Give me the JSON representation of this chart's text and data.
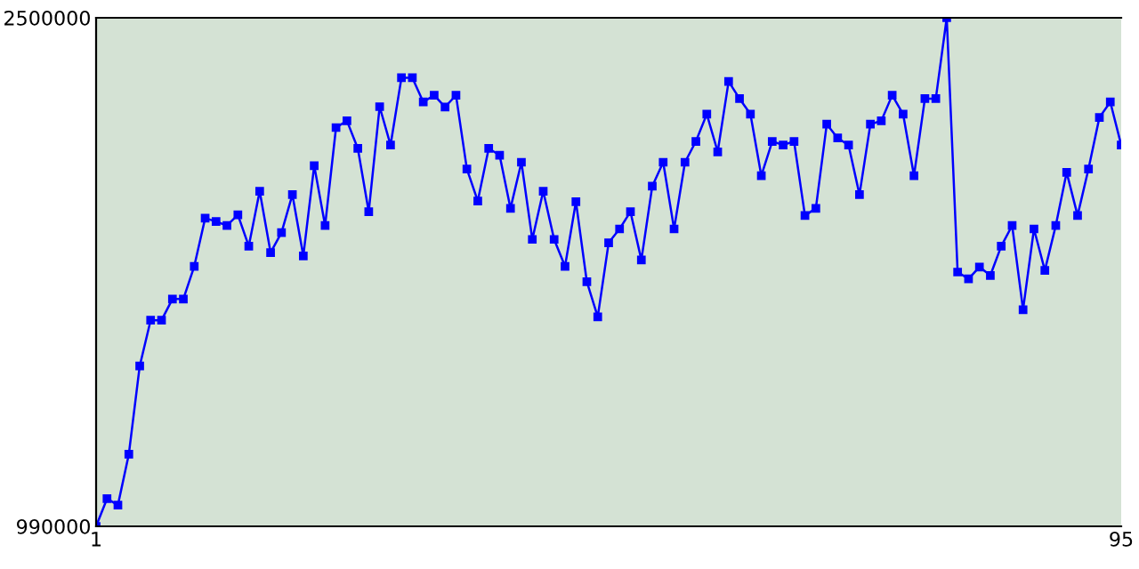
{
  "chart_data": {
    "type": "line",
    "color": "#0000ff",
    "marker": "square",
    "line_style": "solid",
    "grid": false,
    "legend": false,
    "x": [
      1,
      2,
      3,
      4,
      5,
      6,
      7,
      8,
      9,
      10,
      11,
      12,
      13,
      14,
      15,
      16,
      17,
      18,
      19,
      20,
      21,
      22,
      23,
      24,
      25,
      26,
      27,
      28,
      29,
      30,
      31,
      32,
      33,
      34,
      35,
      36,
      37,
      38,
      39,
      40,
      41,
      42,
      43,
      44,
      45,
      46,
      47,
      48,
      49,
      50,
      51,
      52,
      53,
      54,
      55,
      56,
      57,
      58,
      59,
      60,
      61,
      62,
      63,
      64,
      65,
      66,
      67,
      68,
      69,
      70,
      71,
      72,
      73,
      74,
      75,
      76,
      77,
      78,
      79,
      80,
      81,
      82,
      83,
      84,
      85,
      86,
      87,
      88,
      89,
      90,
      91,
      92,
      93,
      94,
      95
    ],
    "values": [
      990000,
      1072000,
      1053000,
      1204000,
      1466000,
      1602000,
      1602000,
      1665000,
      1665000,
      1762000,
      1905000,
      1895000,
      1883000,
      1915000,
      1822000,
      1985000,
      1803000,
      1862000,
      1975000,
      1793000,
      2061000,
      1883000,
      2174000,
      2194000,
      2112000,
      1924000,
      2236000,
      2122000,
      2322000,
      2322000,
      2250000,
      2270000,
      2235000,
      2270000,
      2051000,
      1956000,
      2112000,
      2092000,
      1934000,
      2071000,
      1842000,
      1985000,
      1842000,
      1762000,
      1954000,
      1716000,
      1612000,
      1832000,
      1873000,
      1924000,
      1781000,
      2000000,
      2071000,
      1873000,
      2071000,
      2133000,
      2214000,
      2102000,
      2311000,
      2260000,
      2214000,
      2031000,
      2133000,
      2122000,
      2133000,
      1913000,
      1934000,
      2184000,
      2143000,
      2122000,
      1975000,
      2184000,
      2194000,
      2270000,
      2214000,
      2031000,
      2260000,
      2260000,
      2500000,
      1745000,
      1725000,
      1760000,
      1735000,
      1822000,
      1883000,
      1633000,
      1873000,
      1750000,
      1883000,
      2041000,
      1913000,
      2051000,
      2204000,
      2250000,
      2122000
    ],
    "xlim": [
      1,
      95
    ],
    "xticks": [
      1,
      95
    ],
    "ylim": [
      990000,
      2500000
    ],
    "yticks": [
      990000,
      2500000
    ]
  }
}
